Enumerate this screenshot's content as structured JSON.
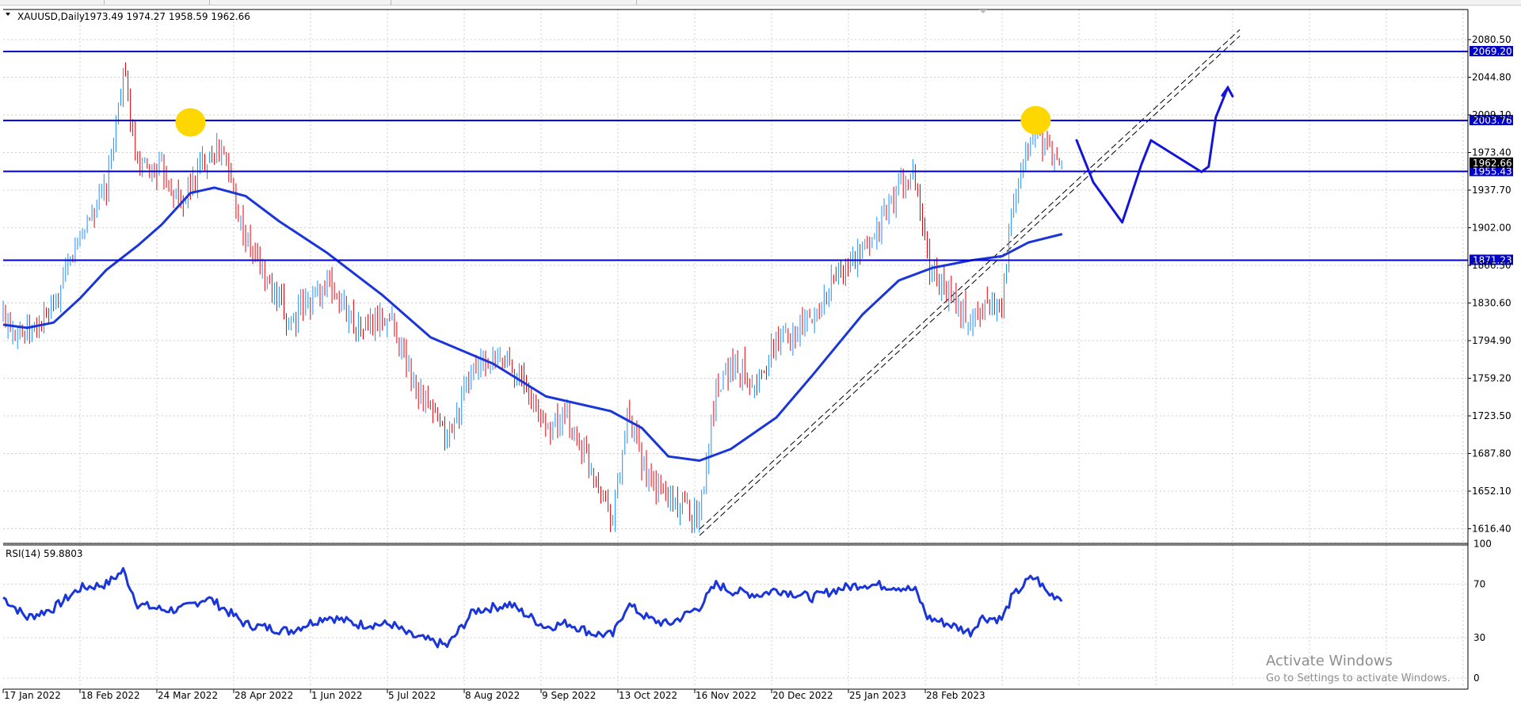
{
  "chart_data": {
    "type": "candlestick",
    "symbol_header": "XAUUSD,Daily",
    "ohlc_header": "1973.49 1974.27 1958.59 1962.66",
    "price_axis_ticks": [
      "2080.50",
      "2044.80",
      "2009.10",
      "1973.40",
      "1937.70",
      "1902.00",
      "1866.30",
      "1830.60",
      "1794.90",
      "1759.20",
      "1723.50",
      "1687.80",
      "1652.10",
      "1616.40"
    ],
    "price_axis_values": [
      2080.5,
      2044.8,
      2009.1,
      1973.4,
      1937.7,
      1902.0,
      1866.3,
      1830.6,
      1794.9,
      1759.2,
      1723.5,
      1687.8,
      1652.1,
      1616.4
    ],
    "ylim": [
      1609,
      2089
    ],
    "date_axis_ticks": [
      "17 Jan 2022",
      "18 Feb 2022",
      "24 Mar 2022",
      "28 Apr 2022",
      "1 Jun 2022",
      "5 Jul 2022",
      "8 Aug 2022",
      "9 Sep 2022",
      "13 Oct 2022",
      "16 Nov 2022",
      "20 Dec 2022",
      "25 Jan 2023",
      "28 Feb 2023"
    ],
    "horizontal_levels": [
      {
        "value": 2069.2,
        "label": "2069.20"
      },
      {
        "value": 2003.76,
        "label": "2003.76"
      },
      {
        "value": 1955.43,
        "label": "1955.43"
      },
      {
        "value": 1871.23,
        "label": "1871.23"
      }
    ],
    "current_price": {
      "value": 1962.66,
      "label": "1962.66"
    },
    "close_path": [
      {
        "t": "2022-01-17",
        "p": 1818
      },
      {
        "t": "2022-01-27",
        "p": 1800
      },
      {
        "t": "2022-02-07",
        "p": 1823
      },
      {
        "t": "2022-02-18",
        "p": 1897
      },
      {
        "t": "2022-03-01",
        "p": 1938
      },
      {
        "t": "2022-03-08",
        "p": 2052
      },
      {
        "t": "2022-03-14",
        "p": 1955
      },
      {
        "t": "2022-03-24",
        "p": 1958
      },
      {
        "t": "2022-04-01",
        "p": 1925
      },
      {
        "t": "2022-04-12",
        "p": 1972
      },
      {
        "t": "2022-04-18",
        "p": 1978
      },
      {
        "t": "2022-04-28",
        "p": 1890
      },
      {
        "t": "2022-05-16",
        "p": 1812
      },
      {
        "t": "2022-06-01",
        "p": 1850
      },
      {
        "t": "2022-06-14",
        "p": 1807
      },
      {
        "t": "2022-06-28",
        "p": 1816
      },
      {
        "t": "2022-07-05",
        "p": 1765
      },
      {
        "t": "2022-07-21",
        "p": 1700
      },
      {
        "t": "2022-08-01",
        "p": 1770
      },
      {
        "t": "2022-08-16",
        "p": 1776
      },
      {
        "t": "2022-08-31",
        "p": 1714
      },
      {
        "t": "2022-09-09",
        "p": 1720
      },
      {
        "t": "2022-09-20",
        "p": 1672
      },
      {
        "t": "2022-09-28",
        "p": 1627
      },
      {
        "t": "2022-10-04",
        "p": 1720
      },
      {
        "t": "2022-10-13",
        "p": 1660
      },
      {
        "t": "2022-10-21",
        "p": 1646
      },
      {
        "t": "2022-11-03",
        "p": 1630
      },
      {
        "t": "2022-11-10",
        "p": 1752
      },
      {
        "t": "2022-11-16",
        "p": 1773
      },
      {
        "t": "2022-11-28",
        "p": 1755
      },
      {
        "t": "2022-12-05",
        "p": 1795
      },
      {
        "t": "2022-12-20",
        "p": 1815
      },
      {
        "t": "2022-12-30",
        "p": 1858
      },
      {
        "t": "2023-01-10",
        "p": 1877
      },
      {
        "t": "2023-01-25",
        "p": 1940
      },
      {
        "t": "2023-02-01",
        "p": 1948
      },
      {
        "t": "2023-02-06",
        "p": 1870
      },
      {
        "t": "2023-02-15",
        "p": 1836
      },
      {
        "t": "2023-02-24",
        "p": 1812
      },
      {
        "t": "2023-02-28",
        "p": 1826
      },
      {
        "t": "2023-03-09",
        "p": 1833
      },
      {
        "t": "2023-03-13",
        "p": 1912
      },
      {
        "t": "2023-03-20",
        "p": 1978
      },
      {
        "t": "2023-03-23",
        "p": 1993
      },
      {
        "t": "2023-03-28",
        "p": 1973
      },
      {
        "t": "2023-04-03",
        "p": 1962.66
      }
    ],
    "moving_average": [
      {
        "t": "2022-01-17",
        "p": 1810
      },
      {
        "t": "2022-01-27",
        "p": 1807
      },
      {
        "t": "2022-02-07",
        "p": 1812
      },
      {
        "t": "2022-02-18",
        "p": 1835
      },
      {
        "t": "2022-03-01",
        "p": 1862
      },
      {
        "t": "2022-03-14",
        "p": 1885
      },
      {
        "t": "2022-03-24",
        "p": 1905
      },
      {
        "t": "2022-04-05",
        "p": 1935
      },
      {
        "t": "2022-04-15",
        "p": 1940
      },
      {
        "t": "2022-04-28",
        "p": 1932
      },
      {
        "t": "2022-05-12",
        "p": 1908
      },
      {
        "t": "2022-06-01",
        "p": 1878
      },
      {
        "t": "2022-06-24",
        "p": 1838
      },
      {
        "t": "2022-07-14",
        "p": 1798
      },
      {
        "t": "2022-08-09",
        "p": 1773
      },
      {
        "t": "2022-08-31",
        "p": 1742
      },
      {
        "t": "2022-09-27",
        "p": 1728
      },
      {
        "t": "2022-10-10",
        "p": 1712
      },
      {
        "t": "2022-10-21",
        "p": 1685
      },
      {
        "t": "2022-11-03",
        "p": 1681
      },
      {
        "t": "2022-11-16",
        "p": 1692
      },
      {
        "t": "2022-12-05",
        "p": 1722
      },
      {
        "t": "2022-12-20",
        "p": 1762
      },
      {
        "t": "2023-01-10",
        "p": 1820
      },
      {
        "t": "2023-01-25",
        "p": 1852
      },
      {
        "t": "2023-02-08",
        "p": 1864
      },
      {
        "t": "2023-02-24",
        "p": 1871
      },
      {
        "t": "2023-03-09",
        "p": 1875
      },
      {
        "t": "2023-03-20",
        "p": 1888
      },
      {
        "t": "2023-04-03",
        "p": 1896
      }
    ],
    "annotations": [
      {
        "type": "circle",
        "color": "#ffd700",
        "t": "2022-04-05",
        "p": 2002
      },
      {
        "type": "circle",
        "color": "#ffd700",
        "t": "2023-03-23",
        "p": 2004
      },
      {
        "type": "channel",
        "style": "dashed",
        "lines": [
          [
            {
              "t": "2022-11-03",
              "p": 1610
            },
            {
              "t": "2023-06-16",
              "p": 2084
            }
          ],
          [
            {
              "t": "2022-11-03",
              "p": 1616
            },
            {
              "t": "2023-06-16",
              "p": 2090
            }
          ]
        ]
      },
      {
        "type": "projection",
        "color": "#1515d8",
        "arrow": true,
        "points": [
          {
            "t": "2023-04-09",
            "p": 1985
          },
          {
            "t": "2023-04-16",
            "p": 1945
          },
          {
            "t": "2023-04-28",
            "p": 1907
          },
          {
            "t": "2023-05-06",
            "p": 1962
          },
          {
            "t": "2023-05-10",
            "p": 1985
          },
          {
            "t": "2023-05-31",
            "p": 1955
          },
          {
            "t": "2023-06-03",
            "p": 1960
          },
          {
            "t": "2023-06-06",
            "p": 2007
          },
          {
            "t": "2023-06-11",
            "p": 2035
          }
        ]
      }
    ],
    "rsi": {
      "label": "RSI(14) 59.8803",
      "axis_ticks": [
        "100",
        "70",
        "30",
        "0"
      ],
      "axis_values": [
        100,
        70,
        30,
        0
      ],
      "ylim": [
        0,
        100
      ],
      "values": [
        {
          "t": "2022-01-17",
          "v": 60
        },
        {
          "t": "2022-01-27",
          "v": 45
        },
        {
          "t": "2022-02-07",
          "v": 52
        },
        {
          "t": "2022-02-18",
          "v": 67
        },
        {
          "t": "2022-03-01",
          "v": 70
        },
        {
          "t": "2022-03-08",
          "v": 80
        },
        {
          "t": "2022-03-14",
          "v": 55
        },
        {
          "t": "2022-03-24",
          "v": 51
        },
        {
          "t": "2022-04-01",
          "v": 51
        },
        {
          "t": "2022-04-12",
          "v": 60
        },
        {
          "t": "2022-04-18",
          "v": 53
        },
        {
          "t": "2022-04-28",
          "v": 40
        },
        {
          "t": "2022-05-16",
          "v": 35
        },
        {
          "t": "2022-06-01",
          "v": 46
        },
        {
          "t": "2022-06-14",
          "v": 40
        },
        {
          "t": "2022-06-28",
          "v": 40
        },
        {
          "t": "2022-07-05",
          "v": 32
        },
        {
          "t": "2022-07-21",
          "v": 24
        },
        {
          "t": "2022-08-01",
          "v": 50
        },
        {
          "t": "2022-08-16",
          "v": 55
        },
        {
          "t": "2022-08-31",
          "v": 38
        },
        {
          "t": "2022-09-09",
          "v": 41
        },
        {
          "t": "2022-09-20",
          "v": 33
        },
        {
          "t": "2022-09-28",
          "v": 32
        },
        {
          "t": "2022-10-04",
          "v": 55
        },
        {
          "t": "2022-10-13",
          "v": 44
        },
        {
          "t": "2022-10-21",
          "v": 40
        },
        {
          "t": "2022-11-03",
          "v": 53
        },
        {
          "t": "2022-11-10",
          "v": 70
        },
        {
          "t": "2022-11-16",
          "v": 65
        },
        {
          "t": "2022-11-28",
          "v": 62
        },
        {
          "t": "2022-12-05",
          "v": 66
        },
        {
          "t": "2022-12-20",
          "v": 60
        },
        {
          "t": "2022-12-30",
          "v": 66
        },
        {
          "t": "2023-01-10",
          "v": 70
        },
        {
          "t": "2023-01-25",
          "v": 68
        },
        {
          "t": "2023-02-01",
          "v": 65
        },
        {
          "t": "2023-02-06",
          "v": 45
        },
        {
          "t": "2023-02-15",
          "v": 40
        },
        {
          "t": "2023-02-24",
          "v": 34
        },
        {
          "t": "2023-02-28",
          "v": 45
        },
        {
          "t": "2023-03-09",
          "v": 44
        },
        {
          "t": "2023-03-13",
          "v": 60
        },
        {
          "t": "2023-03-20",
          "v": 73
        },
        {
          "t": "2023-03-23",
          "v": 75
        },
        {
          "t": "2023-03-28",
          "v": 63
        },
        {
          "t": "2023-04-03",
          "v": 59.88
        }
      ]
    },
    "colors": {
      "bull": "#1e90ff",
      "bear": "#e8000b",
      "levels": "#0000cc",
      "indicator": "#1a35d8",
      "tag_bg": "#0000cc",
      "current_tag_bg": "#000000",
      "grid": "#cfcfcf"
    },
    "grid": true
  },
  "overlay": {
    "watermark_title": "Activate Windows",
    "watermark_sub": "Go to Settings to activate Windows."
  }
}
